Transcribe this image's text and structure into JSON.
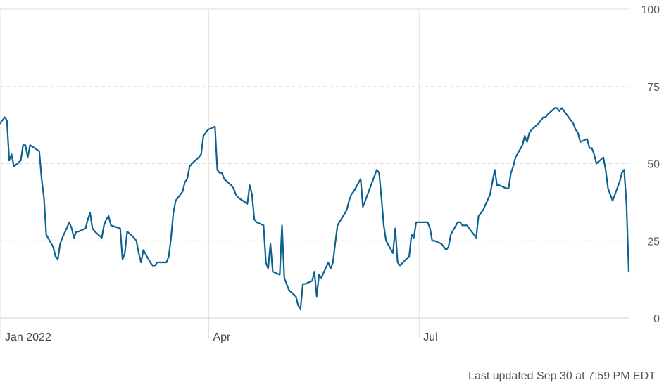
{
  "chart_data": {
    "type": "line",
    "x_ticks": [
      {
        "x": "2022-01-01",
        "label": "Jan 2022"
      },
      {
        "x": "2022-04-01",
        "label": "Apr"
      },
      {
        "x": "2022-07-01",
        "label": "Jul"
      }
    ],
    "y_ticks": [
      0,
      25,
      50,
      75,
      100
    ],
    "ylim": [
      0,
      100
    ],
    "xlim": [
      "2022-01-01",
      "2022-09-30"
    ],
    "grid": {
      "y": "dashed",
      "x": "solid at month ticks"
    },
    "line_color": "#0b6290",
    "series": [
      {
        "values": [
          [
            "2022-01-01",
            63
          ],
          [
            "2022-01-03",
            65
          ],
          [
            "2022-01-04",
            64
          ],
          [
            "2022-01-05",
            51
          ],
          [
            "2022-01-06",
            53
          ],
          [
            "2022-01-07",
            49
          ],
          [
            "2022-01-10",
            51
          ],
          [
            "2022-01-11",
            56
          ],
          [
            "2022-01-12",
            56
          ],
          [
            "2022-01-13",
            52
          ],
          [
            "2022-01-14",
            56
          ],
          [
            "2022-01-18",
            54
          ],
          [
            "2022-01-19",
            45
          ],
          [
            "2022-01-20",
            39
          ],
          [
            "2022-01-21",
            27
          ],
          [
            "2022-01-24",
            23
          ],
          [
            "2022-01-25",
            20
          ],
          [
            "2022-01-26",
            19
          ],
          [
            "2022-01-27",
            24
          ],
          [
            "2022-01-28",
            26
          ],
          [
            "2022-01-31",
            31
          ],
          [
            "2022-02-01",
            29
          ],
          [
            "2022-02-02",
            26
          ],
          [
            "2022-02-03",
            28
          ],
          [
            "2022-02-04",
            28
          ],
          [
            "2022-02-07",
            29
          ],
          [
            "2022-02-08",
            32
          ],
          [
            "2022-02-09",
            34
          ],
          [
            "2022-02-10",
            29
          ],
          [
            "2022-02-11",
            28
          ],
          [
            "2022-02-14",
            26
          ],
          [
            "2022-02-15",
            30
          ],
          [
            "2022-02-16",
            32
          ],
          [
            "2022-02-17",
            33
          ],
          [
            "2022-02-18",
            30
          ],
          [
            "2022-02-22",
            29
          ],
          [
            "2022-02-23",
            19
          ],
          [
            "2022-02-24",
            21
          ],
          [
            "2022-02-25",
            28
          ],
          [
            "2022-02-28",
            26
          ],
          [
            "2022-03-01",
            25
          ],
          [
            "2022-03-02",
            21
          ],
          [
            "2022-03-03",
            18
          ],
          [
            "2022-03-04",
            22
          ],
          [
            "2022-03-07",
            18
          ],
          [
            "2022-03-08",
            17
          ],
          [
            "2022-03-09",
            17
          ],
          [
            "2022-03-10",
            18
          ],
          [
            "2022-03-11",
            18
          ],
          [
            "2022-03-14",
            18
          ],
          [
            "2022-03-15",
            20
          ],
          [
            "2022-03-16",
            26
          ],
          [
            "2022-03-17",
            34
          ],
          [
            "2022-03-18",
            38
          ],
          [
            "2022-03-21",
            41
          ],
          [
            "2022-03-22",
            44
          ],
          [
            "2022-03-23",
            45
          ],
          [
            "2022-03-24",
            49
          ],
          [
            "2022-03-25",
            50
          ],
          [
            "2022-03-28",
            52
          ],
          [
            "2022-03-29",
            53
          ],
          [
            "2022-03-30",
            59
          ],
          [
            "2022-03-31",
            60
          ],
          [
            "2022-04-01",
            61
          ],
          [
            "2022-04-04",
            62
          ],
          [
            "2022-04-05",
            48
          ],
          [
            "2022-04-06",
            47
          ],
          [
            "2022-04-07",
            47
          ],
          [
            "2022-04-08",
            45
          ],
          [
            "2022-04-11",
            43
          ],
          [
            "2022-04-12",
            42
          ],
          [
            "2022-04-13",
            40
          ],
          [
            "2022-04-14",
            39
          ],
          [
            "2022-04-18",
            37
          ],
          [
            "2022-04-19",
            43
          ],
          [
            "2022-04-20",
            40
          ],
          [
            "2022-04-21",
            32
          ],
          [
            "2022-04-22",
            31
          ],
          [
            "2022-04-25",
            30
          ],
          [
            "2022-04-26",
            18
          ],
          [
            "2022-04-27",
            16
          ],
          [
            "2022-04-28",
            24
          ],
          [
            "2022-04-29",
            15
          ],
          [
            "2022-05-02",
            14
          ],
          [
            "2022-05-03",
            30
          ],
          [
            "2022-05-04",
            13
          ],
          [
            "2022-05-05",
            11
          ],
          [
            "2022-05-06",
            9
          ],
          [
            "2022-05-09",
            7
          ],
          [
            "2022-05-10",
            4
          ],
          [
            "2022-05-11",
            3
          ],
          [
            "2022-05-12",
            11
          ],
          [
            "2022-05-13",
            11
          ],
          [
            "2022-05-16",
            12
          ],
          [
            "2022-05-17",
            15
          ],
          [
            "2022-05-18",
            7
          ],
          [
            "2022-05-19",
            14
          ],
          [
            "2022-05-20",
            13
          ],
          [
            "2022-05-23",
            18
          ],
          [
            "2022-05-24",
            16
          ],
          [
            "2022-05-25",
            18
          ],
          [
            "2022-05-26",
            24
          ],
          [
            "2022-05-27",
            30
          ],
          [
            "2022-05-31",
            35
          ],
          [
            "2022-06-01",
            38
          ],
          [
            "2022-06-02",
            40
          ],
          [
            "2022-06-03",
            41
          ],
          [
            "2022-06-06",
            45
          ],
          [
            "2022-06-07",
            36
          ],
          [
            "2022-06-08",
            38
          ],
          [
            "2022-06-13",
            48
          ],
          [
            "2022-06-14",
            47
          ],
          [
            "2022-06-15",
            39
          ],
          [
            "2022-06-16",
            30
          ],
          [
            "2022-06-17",
            25
          ],
          [
            "2022-06-20",
            21
          ],
          [
            "2022-06-21",
            29
          ],
          [
            "2022-06-22",
            18
          ],
          [
            "2022-06-23",
            17
          ],
          [
            "2022-06-27",
            20
          ],
          [
            "2022-06-28",
            27
          ],
          [
            "2022-06-29",
            26
          ],
          [
            "2022-06-30",
            31
          ],
          [
            "2022-07-01",
            31
          ],
          [
            "2022-07-05",
            31
          ],
          [
            "2022-07-06",
            29
          ],
          [
            "2022-07-07",
            25
          ],
          [
            "2022-07-08",
            25
          ],
          [
            "2022-07-11",
            24
          ],
          [
            "2022-07-12",
            23
          ],
          [
            "2022-07-13",
            22
          ],
          [
            "2022-07-14",
            23
          ],
          [
            "2022-07-15",
            27
          ],
          [
            "2022-07-18",
            31
          ],
          [
            "2022-07-19",
            31
          ],
          [
            "2022-07-20",
            30
          ],
          [
            "2022-07-21",
            30
          ],
          [
            "2022-07-22",
            30
          ],
          [
            "2022-07-25",
            27
          ],
          [
            "2022-07-26",
            26
          ],
          [
            "2022-07-27",
            33
          ],
          [
            "2022-07-28",
            34
          ],
          [
            "2022-07-29",
            35
          ],
          [
            "2022-08-01",
            40
          ],
          [
            "2022-08-02",
            44
          ],
          [
            "2022-08-03",
            48
          ],
          [
            "2022-08-04",
            43
          ],
          [
            "2022-08-05",
            43
          ],
          [
            "2022-08-08",
            42
          ],
          [
            "2022-08-09",
            42
          ],
          [
            "2022-08-10",
            47
          ],
          [
            "2022-08-11",
            49
          ],
          [
            "2022-08-12",
            52
          ],
          [
            "2022-08-15",
            56
          ],
          [
            "2022-08-16",
            59
          ],
          [
            "2022-08-17",
            57
          ],
          [
            "2022-08-18",
            60
          ],
          [
            "2022-08-19",
            61
          ],
          [
            "2022-08-22",
            63
          ],
          [
            "2022-08-23",
            64
          ],
          [
            "2022-08-24",
            65
          ],
          [
            "2022-08-25",
            65
          ],
          [
            "2022-08-26",
            66
          ],
          [
            "2022-08-29",
            68
          ],
          [
            "2022-08-30",
            68
          ],
          [
            "2022-08-31",
            67
          ],
          [
            "2022-09-01",
            68
          ],
          [
            "2022-09-02",
            67
          ],
          [
            "2022-09-06",
            63
          ],
          [
            "2022-09-07",
            61
          ],
          [
            "2022-09-08",
            60
          ],
          [
            "2022-09-09",
            57
          ],
          [
            "2022-09-12",
            58
          ],
          [
            "2022-09-13",
            55
          ],
          [
            "2022-09-14",
            55
          ],
          [
            "2022-09-15",
            53
          ],
          [
            "2022-09-16",
            50
          ],
          [
            "2022-09-19",
            52
          ],
          [
            "2022-09-20",
            48
          ],
          [
            "2022-09-21",
            42
          ],
          [
            "2022-09-22",
            40
          ],
          [
            "2022-09-23",
            38
          ],
          [
            "2022-09-24",
            40
          ],
          [
            "2022-09-26",
            44
          ],
          [
            "2022-09-27",
            47
          ],
          [
            "2022-09-28",
            48
          ],
          [
            "2022-09-29",
            37
          ],
          [
            "2022-09-30",
            15
          ]
        ]
      }
    ]
  },
  "footer": {
    "last_updated": "Last updated Sep 30 at 7:59 PM EDT"
  }
}
